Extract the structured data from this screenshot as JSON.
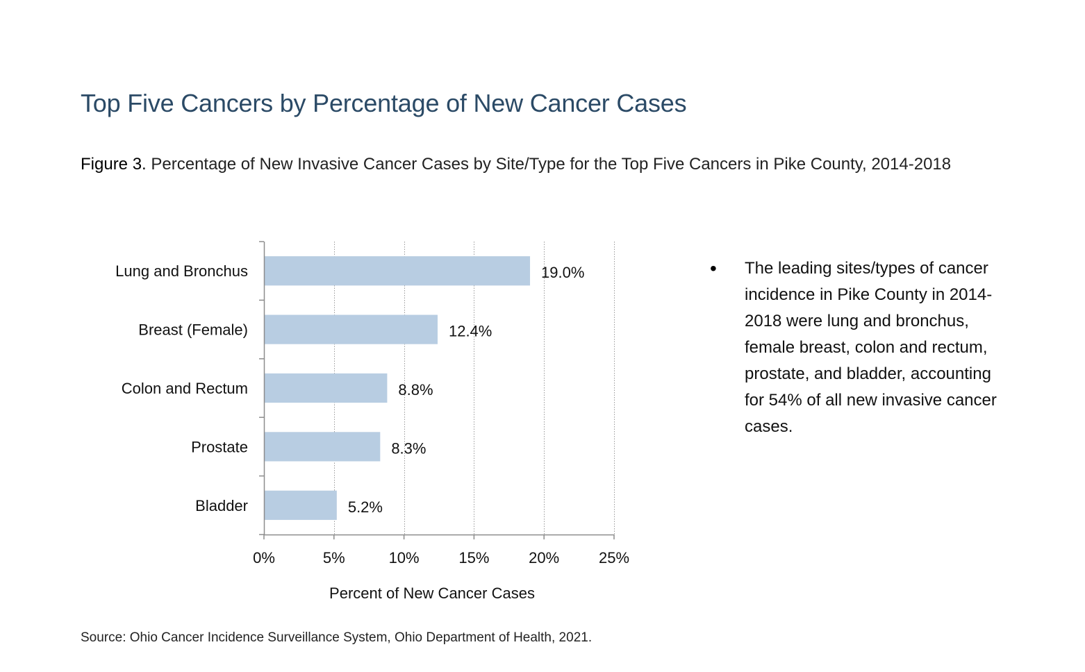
{
  "page": {
    "section_title": "Top Five Cancers by Percentage of New Cancer Cases",
    "figure_label": "Figure 3.",
    "figure_caption": " Percentage of New Invasive Cancer Cases by Site/Type for the Top Five Cancers in Pike County, 2014-2018",
    "bullet_text": "The leading sites/types of cancer incidence in Pike County in 2014-2018 were lung and bronchus, female breast, colon and rectum, prostate, and bladder, accounting for 54% of all new invasive cancer cases.",
    "source": "Source: Ohio Cancer Incidence Surveillance System, Ohio Department of Health, 2021."
  },
  "chart_data": {
    "type": "bar",
    "orientation": "horizontal",
    "categories": [
      "Lung and Bronchus",
      "Breast (Female)",
      "Colon and Rectum",
      "Prostate",
      "Bladder"
    ],
    "values": [
      19.0,
      12.4,
      8.8,
      8.3,
      5.2
    ],
    "data_labels": [
      "19.0%",
      "12.4%",
      "8.8%",
      "8.3%",
      "5.2%"
    ],
    "xlabel": "Percent of New Cancer Cases",
    "ylabel": "",
    "xlim": [
      0,
      25
    ],
    "xticks": [
      0,
      5,
      10,
      15,
      20,
      25
    ],
    "xtick_labels": [
      "0%",
      "5%",
      "10%",
      "15%",
      "20%",
      "25%"
    ],
    "grid": "vertical dotted",
    "legend": "none",
    "bar_color": "#b8cde2"
  }
}
